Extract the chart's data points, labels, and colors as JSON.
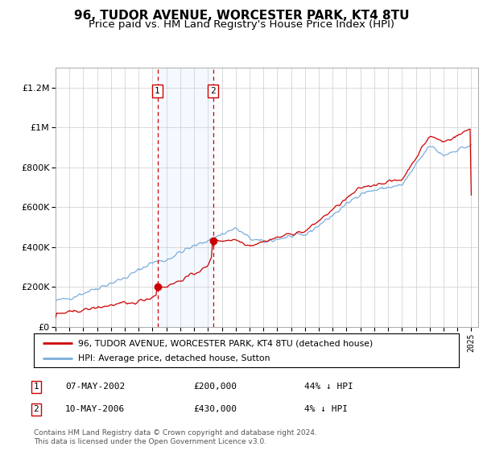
{
  "title": "96, TUDOR AVENUE, WORCESTER PARK, KT4 8TU",
  "subtitle": "Price paid vs. HM Land Registry's House Price Index (HPI)",
  "title_fontsize": 11,
  "subtitle_fontsize": 9.5,
  "ylabel_ticks": [
    "£0",
    "£200K",
    "£400K",
    "£600K",
    "£800K",
    "£1M",
    "£1.2M"
  ],
  "ytick_vals": [
    0,
    200000,
    400000,
    600000,
    800000,
    1000000,
    1200000
  ],
  "ylim": [
    0,
    1300000
  ],
  "xlim_start": 1995.0,
  "xlim_end": 2025.5,
  "transaction1_x": 2002.35,
  "transaction1_price": 200000,
  "transaction1_label": "1",
  "transaction2_x": 2006.36,
  "transaction2_price": 430000,
  "transaction2_label": "2",
  "legend_line1": "96, TUDOR AVENUE, WORCESTER PARK, KT4 8TU (detached house)",
  "legend_line2": "HPI: Average price, detached house, Sutton",
  "table_row1_num": "1",
  "table_row1_date": "07-MAY-2002",
  "table_row1_price": "£200,000",
  "table_row1_hpi": "44% ↓ HPI",
  "table_row2_num": "2",
  "table_row2_date": "10-MAY-2006",
  "table_row2_price": "£430,000",
  "table_row2_hpi": "4% ↓ HPI",
  "footer": "Contains HM Land Registry data © Crown copyright and database right 2024.\nThis data is licensed under the Open Government Licence v3.0.",
  "red_color": "#cc0000",
  "blue_color": "#7aaddc",
  "shade_color": "#ddeeff",
  "grid_color": "#cccccc",
  "background_color": "#ffffff"
}
